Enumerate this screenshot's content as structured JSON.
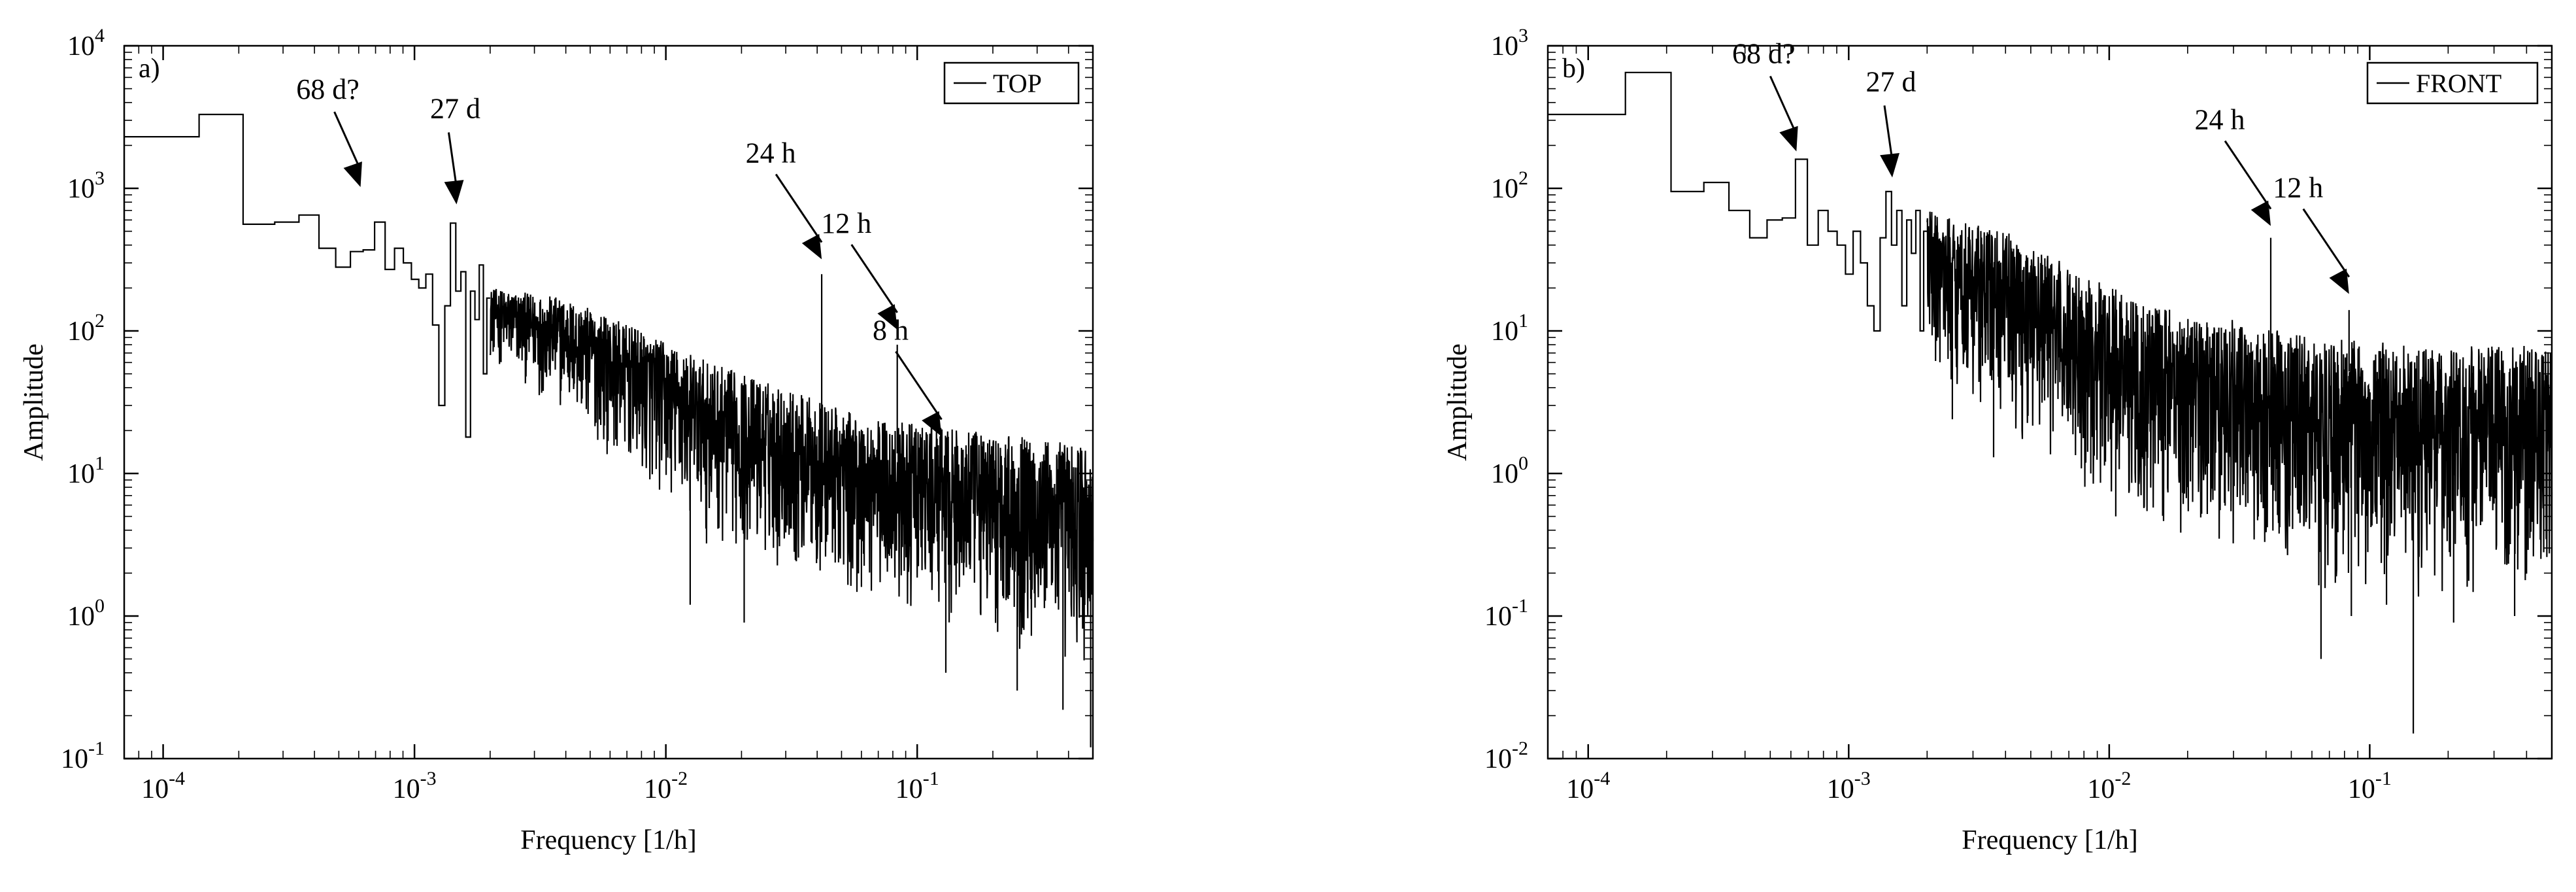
{
  "chart_data": [
    {
      "type": "line",
      "panel_label": "a)",
      "legend": "TOP",
      "legend_position": "top-right",
      "xlabel": "Frequency [1/h]",
      "ylabel": "Amplitude",
      "x_scale": "log",
      "y_scale": "log",
      "xlim": [
        7e-05,
        0.5
      ],
      "ylim": [
        0.1,
        10000
      ],
      "x_ticks": [
        {
          "base": "10",
          "exp": "-4",
          "value": 0.0001
        },
        {
          "base": "10",
          "exp": "-3",
          "value": 0.001
        },
        {
          "base": "10",
          "exp": "-2",
          "value": 0.01
        },
        {
          "base": "10",
          "exp": "-1",
          "value": 0.1
        }
      ],
      "y_ticks": [
        {
          "base": "10",
          "exp": "-1",
          "value": 0.1
        },
        {
          "base": "10",
          "exp": "0",
          "value": 1
        },
        {
          "base": "10",
          "exp": "1",
          "value": 10
        },
        {
          "base": "10",
          "exp": "2",
          "value": 100
        },
        {
          "base": "10",
          "exp": "3",
          "value": 1000
        },
        {
          "base": "10",
          "exp": "4",
          "value": 10000
        }
      ],
      "steps": [
        [
          7e-05,
          2300
        ],
        [
          0.000139,
          3300
        ],
        [
          0.000208,
          560
        ],
        [
          0.000278,
          580
        ],
        [
          0.000347,
          650
        ],
        [
          0.000417,
          380
        ],
        [
          0.000486,
          280
        ],
        [
          0.000556,
          360
        ],
        [
          0.000625,
          370
        ],
        [
          0.000694,
          580
        ],
        [
          0.000764,
          270
        ],
        [
          0.000833,
          380
        ],
        [
          0.000903,
          300
        ],
        [
          0.000972,
          230
        ],
        [
          0.00104,
          200
        ],
        [
          0.00111,
          250
        ],
        [
          0.00118,
          110
        ],
        [
          0.00125,
          30
        ],
        [
          0.00132,
          150
        ],
        [
          0.00139,
          570
        ],
        [
          0.00146,
          190
        ],
        [
          0.00153,
          260
        ],
        [
          0.0016,
          18
        ],
        [
          0.00167,
          190
        ],
        [
          0.00174,
          120
        ],
        [
          0.00181,
          290
        ],
        [
          0.00188,
          50
        ],
        [
          0.00194,
          170
        ]
      ],
      "noise_envelope": [
        [
          0.002,
          200,
          60
        ],
        [
          0.004,
          170,
          25
        ],
        [
          0.008,
          100,
          8
        ],
        [
          0.015,
          60,
          3
        ],
        [
          0.03,
          40,
          2
        ],
        [
          0.06,
          25,
          1.2
        ],
        [
          0.15,
          20,
          0.8
        ],
        [
          0.3,
          18,
          0.5
        ],
        [
          0.5,
          16,
          0.3
        ]
      ],
      "noise_points": 2000,
      "peaks": [
        [
          0.0417,
          250
        ],
        [
          0.0833,
          80
        ],
        [
          0.125,
          15
        ]
      ],
      "dips": [
        [
          0.0125,
          1.2
        ],
        [
          0.0205,
          0.9
        ],
        [
          0.06,
          1.6
        ],
        [
          0.13,
          0.4
        ],
        [
          0.25,
          0.3
        ],
        [
          0.38,
          0.22
        ],
        [
          0.49,
          0.12
        ]
      ],
      "annotations": [
        {
          "text": "68 d?",
          "x": 0.00061,
          "y": 900,
          "anchor": "end"
        },
        {
          "text": "27 d",
          "x": 0.00147,
          "y": 680,
          "anchor": "mid"
        },
        {
          "text": "24 h",
          "x": 0.0417,
          "y": 280,
          "anchor": "start"
        },
        {
          "text": "12 h",
          "x": 0.0833,
          "y": 90,
          "anchor": "start"
        },
        {
          "text": "8 h",
          "x": 0.125,
          "y": 16,
          "anchor": "start"
        }
      ]
    },
    {
      "type": "line",
      "panel_label": "b)",
      "legend": "FRONT",
      "legend_position": "top-right",
      "xlabel": "Frequency [1/h]",
      "ylabel": "Amplitude",
      "x_scale": "log",
      "y_scale": "log",
      "xlim": [
        7e-05,
        0.5
      ],
      "ylim": [
        0.01,
        1000
      ],
      "x_ticks": [
        {
          "base": "10",
          "exp": "-4",
          "value": 0.0001
        },
        {
          "base": "10",
          "exp": "-3",
          "value": 0.001
        },
        {
          "base": "10",
          "exp": "-2",
          "value": 0.01
        },
        {
          "base": "10",
          "exp": "-1",
          "value": 0.1
        }
      ],
      "y_ticks": [
        {
          "base": "10",
          "exp": "-2",
          "value": 0.01
        },
        {
          "base": "10",
          "exp": "-1",
          "value": 0.1
        },
        {
          "base": "10",
          "exp": "0",
          "value": 1
        },
        {
          "base": "10",
          "exp": "1",
          "value": 10
        },
        {
          "base": "10",
          "exp": "2",
          "value": 100
        },
        {
          "base": "10",
          "exp": "3",
          "value": 1000
        }
      ],
      "steps": [
        [
          7e-05,
          330
        ],
        [
          0.000139,
          650
        ],
        [
          0.000208,
          95
        ],
        [
          0.000278,
          110
        ],
        [
          0.000347,
          70
        ],
        [
          0.000417,
          45
        ],
        [
          0.000486,
          60
        ],
        [
          0.000556,
          62
        ],
        [
          0.000625,
          160
        ],
        [
          0.000694,
          40
        ],
        [
          0.000764,
          70
        ],
        [
          0.000833,
          50
        ],
        [
          0.000903,
          40
        ],
        [
          0.000972,
          25
        ],
        [
          0.00104,
          50
        ],
        [
          0.00111,
          30
        ],
        [
          0.00118,
          15
        ],
        [
          0.00125,
          10
        ],
        [
          0.00132,
          45
        ],
        [
          0.00139,
          95
        ],
        [
          0.00146,
          40
        ],
        [
          0.00153,
          70
        ],
        [
          0.0016,
          15
        ],
        [
          0.00167,
          60
        ],
        [
          0.00174,
          35
        ],
        [
          0.00181,
          70
        ],
        [
          0.00188,
          10
        ],
        [
          0.00194,
          50
        ]
      ],
      "noise_envelope": [
        [
          0.002,
          70,
          5
        ],
        [
          0.004,
          50,
          2
        ],
        [
          0.008,
          25,
          0.8
        ],
        [
          0.015,
          15,
          0.4
        ],
        [
          0.03,
          12,
          0.25
        ],
        [
          0.06,
          9,
          0.15
        ],
        [
          0.15,
          8,
          0.12
        ],
        [
          0.3,
          8,
          0.12
        ],
        [
          0.5,
          8,
          0.15
        ]
      ],
      "noise_points": 2000,
      "peaks": [
        [
          0.0417,
          45
        ],
        [
          0.0833,
          14
        ]
      ],
      "dips": [
        [
          0.0025,
          2.4
        ],
        [
          0.0036,
          1.3
        ],
        [
          0.0085,
          1.0
        ],
        [
          0.0106,
          0.5
        ],
        [
          0.065,
          0.05
        ],
        [
          0.085,
          0.1
        ],
        [
          0.116,
          0.12
        ],
        [
          0.147,
          0.015
        ],
        [
          0.21,
          0.09
        ],
        [
          0.36,
          0.1
        ]
      ],
      "annotations": [
        {
          "text": "68 d?",
          "x": 0.00063,
          "y": 160,
          "anchor": "end"
        },
        {
          "text": "27 d",
          "x": 0.00147,
          "y": 105,
          "anchor": "mid"
        },
        {
          "text": "24 h",
          "x": 0.0417,
          "y": 48,
          "anchor": "start"
        },
        {
          "text": "12 h",
          "x": 0.0833,
          "y": 16,
          "anchor": "start"
        }
      ]
    }
  ]
}
